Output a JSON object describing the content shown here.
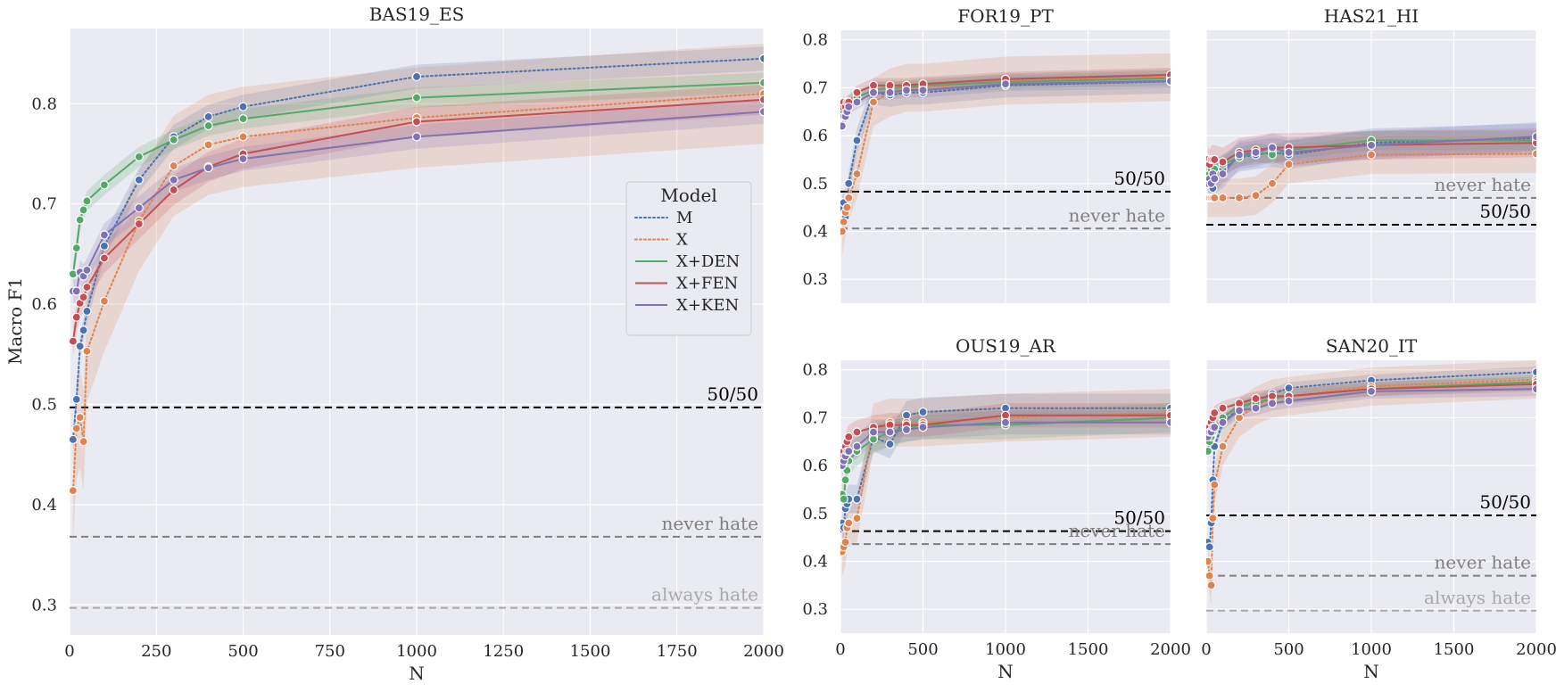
{
  "figure": {
    "ylabel": "Macro F1",
    "xlabel": "N",
    "legend": {
      "title": "Model",
      "placement": "center-right of first panel"
    }
  },
  "series_styles": [
    {
      "name": "M",
      "color": "#4c72b0",
      "dash": "dotted"
    },
    {
      "name": "X",
      "color": "#dd8452",
      "dash": "dotted"
    },
    {
      "name": "X+DEN",
      "color": "#55a868",
      "dash": "solid"
    },
    {
      "name": "X+FEN",
      "color": "#c44e52",
      "dash": "solid"
    },
    {
      "name": "X+KEN",
      "color": "#8172b3",
      "dash": "solid"
    }
  ],
  "chart_data": [
    {
      "type": "line",
      "title": "BAS19_ES",
      "xlabel": "N",
      "ylabel": "Macro F1",
      "xlim": [
        0,
        2000
      ],
      "ylim": [
        0.27,
        0.875
      ],
      "xticks": [
        0,
        250,
        500,
        750,
        1000,
        1250,
        1500,
        1750,
        2000
      ],
      "yticks": [
        0.3,
        0.4,
        0.5,
        0.6,
        0.7,
        0.8
      ],
      "show_xticks": true,
      "show_yticks": true,
      "grid": true,
      "x": [
        10,
        20,
        30,
        40,
        50,
        100,
        200,
        300,
        400,
        500,
        1000,
        2000
      ],
      "series": [
        {
          "name": "M",
          "values": [
            0.465,
            0.505,
            0.558,
            0.574,
            0.593,
            0.658,
            0.724,
            0.767,
            0.787,
            0.797,
            0.827,
            0.845
          ],
          "ci": 0.012
        },
        {
          "name": "X",
          "values": [
            0.414,
            0.476,
            0.487,
            0.463,
            0.553,
            0.603,
            0.683,
            0.738,
            0.759,
            0.767,
            0.786,
            0.81
          ],
          "ci": 0.05
        },
        {
          "name": "X+DEN",
          "values": [
            0.63,
            0.656,
            0.684,
            0.694,
            0.703,
            0.719,
            0.747,
            0.764,
            0.778,
            0.785,
            0.806,
            0.821
          ],
          "ci": 0.01
        },
        {
          "name": "X+FEN",
          "values": [
            0.563,
            0.587,
            0.601,
            0.607,
            0.617,
            0.646,
            0.68,
            0.714,
            0.737,
            0.75,
            0.782,
            0.804
          ],
          "ci": 0.015
        },
        {
          "name": "X+KEN",
          "values": [
            0.613,
            0.613,
            0.632,
            0.628,
            0.634,
            0.669,
            0.696,
            0.724,
            0.736,
            0.745,
            0.767,
            0.792
          ],
          "ci": 0.012
        }
      ],
      "reference_lines": [
        {
          "label": "50/50",
          "value": 0.497,
          "color": "#000000",
          "label_color": "#000000"
        },
        {
          "label": "never hate",
          "value": 0.368,
          "color": "#808080",
          "label_color": "#808080"
        },
        {
          "label": "always hate",
          "value": 0.297,
          "color": "#a9a9a9",
          "label_color": "#a9a9a9"
        }
      ]
    },
    {
      "type": "line",
      "title": "FOR19_PT",
      "xlim": [
        0,
        2000
      ],
      "ylim": [
        0.25,
        0.82
      ],
      "xticks": [
        0,
        500,
        1000,
        1500,
        2000
      ],
      "yticks": [
        0.3,
        0.4,
        0.5,
        0.6,
        0.7,
        0.8
      ],
      "show_xticks": false,
      "show_yticks": true,
      "grid": true,
      "x": [
        10,
        20,
        30,
        40,
        50,
        100,
        200,
        300,
        400,
        500,
        1000,
        2000
      ],
      "series": [
        {
          "name": "M",
          "values": [
            0.45,
            0.46,
            0.43,
            0.45,
            0.5,
            0.59,
            0.69,
            0.685,
            0.69,
            0.69,
            0.705,
            0.713
          ],
          "ci": 0.025
        },
        {
          "name": "X",
          "values": [
            0.4,
            0.42,
            0.44,
            0.45,
            0.47,
            0.52,
            0.67,
            0.69,
            0.7,
            0.7,
            0.715,
            0.722
          ],
          "ci": 0.05
        },
        {
          "name": "X+DEN",
          "values": [
            0.64,
            0.65,
            0.66,
            0.66,
            0.67,
            0.68,
            0.695,
            0.7,
            0.7,
            0.705,
            0.712,
            0.72
          ],
          "ci": 0.015
        },
        {
          "name": "X+FEN",
          "values": [
            0.66,
            0.67,
            0.66,
            0.67,
            0.67,
            0.69,
            0.705,
            0.705,
            0.705,
            0.708,
            0.718,
            0.727
          ],
          "ci": 0.015
        },
        {
          "name": "X+KEN",
          "values": [
            0.62,
            0.64,
            0.64,
            0.65,
            0.66,
            0.67,
            0.69,
            0.69,
            0.695,
            0.695,
            0.708,
            0.714
          ],
          "ci": 0.015
        }
      ],
      "reference_lines": [
        {
          "label": "50/50",
          "value": 0.483,
          "color": "#000000",
          "label_color": "#000000"
        },
        {
          "label": "never hate",
          "value": 0.406,
          "color": "#808080",
          "label_color": "#808080"
        }
      ]
    },
    {
      "type": "line",
      "title": "HAS21_HI",
      "xlim": [
        0,
        2000
      ],
      "ylim": [
        0.25,
        0.82
      ],
      "xticks": [
        0,
        500,
        1000,
        1500,
        2000
      ],
      "yticks": [
        0.3,
        0.4,
        0.5,
        0.6,
        0.7,
        0.8
      ],
      "show_xticks": false,
      "show_yticks": false,
      "grid": true,
      "x": [
        10,
        20,
        30,
        40,
        50,
        100,
        200,
        300,
        400,
        500,
        1000,
        2000
      ],
      "series": [
        {
          "name": "M",
          "values": [
            0.52,
            0.5,
            0.51,
            0.49,
            0.51,
            0.53,
            0.555,
            0.56,
            0.565,
            0.56,
            0.585,
            0.595
          ],
          "ci": 0.03
        },
        {
          "name": "X",
          "values": [
            0.47,
            0.47,
            0.47,
            0.47,
            0.47,
            0.47,
            0.47,
            0.475,
            0.5,
            0.54,
            0.56,
            0.562
          ],
          "ci": 0.04
        },
        {
          "name": "X+DEN",
          "values": [
            0.53,
            0.52,
            0.53,
            0.52,
            0.53,
            0.54,
            0.555,
            0.565,
            0.56,
            0.57,
            0.59,
            0.59
          ],
          "ci": 0.02
        },
        {
          "name": "X+FEN",
          "values": [
            0.55,
            0.54,
            0.55,
            0.55,
            0.55,
            0.545,
            0.565,
            0.57,
            0.575,
            0.575,
            0.58,
            0.585
          ],
          "ci": 0.03
        },
        {
          "name": "X+KEN",
          "values": [
            0.5,
            0.51,
            0.5,
            0.52,
            0.51,
            0.52,
            0.56,
            0.565,
            0.575,
            0.565,
            0.58,
            0.598
          ],
          "ci": 0.03
        }
      ],
      "reference_lines": [
        {
          "label": "never hate",
          "value": 0.47,
          "color": "#808080",
          "label_color": "#808080"
        },
        {
          "label": "50/50",
          "value": 0.414,
          "color": "#000000",
          "label_color": "#000000"
        }
      ]
    },
    {
      "type": "line",
      "title": "OUS19_AR",
      "xlim": [
        0,
        2000
      ],
      "ylim": [
        0.25,
        0.82
      ],
      "xticks": [
        0,
        500,
        1000,
        1500,
        2000
      ],
      "yticks": [
        0.3,
        0.4,
        0.5,
        0.6,
        0.7,
        0.8
      ],
      "show_xticks": true,
      "show_yticks": true,
      "grid": true,
      "x": [
        10,
        20,
        30,
        40,
        50,
        100,
        200,
        300,
        400,
        500,
        1000,
        2000
      ],
      "series": [
        {
          "name": "M",
          "values": [
            0.48,
            0.47,
            0.51,
            0.52,
            0.53,
            0.53,
            0.66,
            0.645,
            0.705,
            0.712,
            0.72,
            0.72
          ],
          "ci": 0.03
        },
        {
          "name": "X",
          "values": [
            0.42,
            0.43,
            0.44,
            0.47,
            0.48,
            0.49,
            0.68,
            0.69,
            0.69,
            0.69,
            0.7,
            0.71
          ],
          "ci": 0.05
        },
        {
          "name": "X+DEN",
          "values": [
            0.54,
            0.53,
            0.57,
            0.59,
            0.61,
            0.63,
            0.655,
            0.67,
            0.68,
            0.685,
            0.685,
            0.7
          ],
          "ci": 0.03
        },
        {
          "name": "X+FEN",
          "values": [
            0.62,
            0.63,
            0.64,
            0.65,
            0.66,
            0.67,
            0.68,
            0.685,
            0.685,
            0.685,
            0.705,
            0.705
          ],
          "ci": 0.025
        },
        {
          "name": "X+KEN",
          "values": [
            0.6,
            0.61,
            0.62,
            0.63,
            0.63,
            0.64,
            0.67,
            0.67,
            0.675,
            0.68,
            0.69,
            0.69
          ],
          "ci": 0.025
        }
      ],
      "reference_lines": [
        {
          "label": "50/50",
          "value": 0.463,
          "color": "#000000",
          "label_color": "#000000"
        },
        {
          "label": "never hate",
          "value": 0.436,
          "color": "#808080",
          "label_color": "#808080"
        }
      ]
    },
    {
      "type": "line",
      "title": "SAN20_IT",
      "xlim": [
        0,
        2000
      ],
      "ylim": [
        0.25,
        0.82
      ],
      "xticks": [
        0,
        500,
        1000,
        1500,
        2000
      ],
      "yticks": [
        0.3,
        0.4,
        0.5,
        0.6,
        0.7,
        0.8
      ],
      "show_xticks": true,
      "show_yticks": false,
      "grid": true,
      "x": [
        10,
        20,
        30,
        40,
        50,
        100,
        200,
        300,
        400,
        500,
        1000,
        2000
      ],
      "series": [
        {
          "name": "M",
          "values": [
            0.44,
            0.43,
            0.48,
            0.57,
            0.64,
            0.69,
            0.72,
            0.735,
            0.75,
            0.762,
            0.778,
            0.795
          ],
          "ci": 0.012
        },
        {
          "name": "X",
          "values": [
            0.4,
            0.37,
            0.35,
            0.49,
            0.56,
            0.64,
            0.7,
            0.725,
            0.74,
            0.745,
            0.765,
            0.78
          ],
          "ci": 0.04
        },
        {
          "name": "X+DEN",
          "values": [
            0.63,
            0.65,
            0.66,
            0.67,
            0.68,
            0.7,
            0.725,
            0.73,
            0.74,
            0.745,
            0.76,
            0.775
          ],
          "ci": 0.015
        },
        {
          "name": "X+FEN",
          "values": [
            0.67,
            0.68,
            0.69,
            0.7,
            0.71,
            0.72,
            0.73,
            0.74,
            0.745,
            0.745,
            0.76,
            0.77
          ],
          "ci": 0.015
        },
        {
          "name": "X+KEN",
          "values": [
            0.66,
            0.67,
            0.67,
            0.68,
            0.68,
            0.69,
            0.715,
            0.72,
            0.73,
            0.735,
            0.755,
            0.76
          ],
          "ci": 0.015
        }
      ],
      "reference_lines": [
        {
          "label": "50/50",
          "value": 0.496,
          "color": "#000000",
          "label_color": "#000000"
        },
        {
          "label": "never hate",
          "value": 0.37,
          "color": "#808080",
          "label_color": "#808080"
        },
        {
          "label": "always hate",
          "value": 0.297,
          "color": "#a9a9a9",
          "label_color": "#a9a9a9"
        }
      ]
    }
  ]
}
